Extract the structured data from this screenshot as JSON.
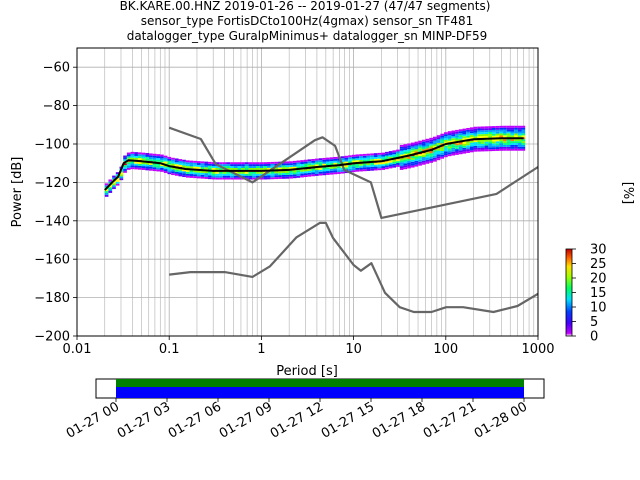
{
  "title_lines": [
    "BK.KARE.00.HNZ   2019-01-26 -- 2019-01-27  (47/47 segments)",
    "sensor_type FortisDCto100Hz(4gmax) sensor_sn TF481",
    "datalogger_type GuralpMinimus+ datalogger_sn MINP-DF59"
  ],
  "chart_data": {
    "type": "heatmap",
    "title": "BK.KARE.00.HNZ   2019-01-26 -- 2019-01-27  (47/47 segments)",
    "xlabel": "Period [s]",
    "ylabel": "Power [dB]",
    "xscale": "log",
    "xlim": [
      0.01,
      1000
    ],
    "ylim": [
      -200,
      -50
    ],
    "x_ticks": [
      "0.01",
      "0.1",
      "1",
      "10",
      "100",
      "1000"
    ],
    "y_ticks": [
      "−60",
      "−80",
      "−100",
      "−120",
      "−140",
      "−160",
      "−180",
      "−200"
    ],
    "grid": true,
    "colorbar": {
      "label": "[%]",
      "range": [
        0,
        30
      ],
      "ticks": [
        "0",
        "5",
        "10",
        "15",
        "20",
        "25",
        "30"
      ]
    },
    "noise_model_high": [
      [
        0.1,
        -91.5
      ],
      [
        0.22,
        -97.4
      ],
      [
        0.32,
        -110.5
      ],
      [
        0.8,
        -120.0
      ],
      [
        3.8,
        -98.0
      ],
      [
        4.6,
        -96.5
      ],
      [
        6.3,
        -101.0
      ],
      [
        7.9,
        -113.5
      ],
      [
        15.4,
        -120.0
      ],
      [
        20,
        -138.5
      ],
      [
        354.8,
        -126.0
      ],
      [
        1000,
        -112.0
      ]
    ],
    "noise_model_low": [
      [
        0.1,
        -168.0
      ],
      [
        0.17,
        -166.7
      ],
      [
        0.4,
        -166.7
      ],
      [
        0.8,
        -169.2
      ],
      [
        1.24,
        -163.7
      ],
      [
        2.4,
        -148.6
      ],
      [
        4.3,
        -141.1
      ],
      [
        5.0,
        -141.1
      ],
      [
        6.0,
        -149.0
      ],
      [
        10,
        -163.0
      ],
      [
        12,
        -166.0
      ],
      [
        15.6,
        -162.1
      ],
      [
        21.9,
        -177.5
      ],
      [
        31.6,
        -185.0
      ],
      [
        45,
        -187.5
      ],
      [
        70,
        -187.5
      ],
      [
        101,
        -185.0
      ],
      [
        154,
        -185.0
      ],
      [
        328,
        -187.5
      ],
      [
        600,
        -184.4
      ],
      [
        1000,
        -178.0
      ]
    ],
    "mean_psd": [
      [
        0.02,
        -124
      ],
      [
        0.024,
        -120
      ],
      [
        0.028,
        -117
      ],
      [
        0.032,
        -110
      ],
      [
        0.036,
        -108.5
      ],
      [
        0.05,
        -109
      ],
      [
        0.08,
        -110
      ],
      [
        0.1,
        -111.5
      ],
      [
        0.15,
        -113
      ],
      [
        0.3,
        -114
      ],
      [
        0.6,
        -114
      ],
      [
        1.0,
        -114
      ],
      [
        2,
        -113.5
      ],
      [
        4,
        -112
      ],
      [
        7,
        -111
      ],
      [
        10,
        -110
      ],
      [
        20,
        -109
      ],
      [
        40,
        -106
      ],
      [
        70,
        -103
      ],
      [
        100,
        -100
      ],
      [
        200,
        -97.5
      ],
      [
        400,
        -97
      ],
      [
        700,
        -97
      ]
    ],
    "time_axis": {
      "ticks": [
        "01-27 00",
        "01-27 03",
        "01-27 06",
        "01-27 09",
        "01-27 12",
        "01-27 15",
        "01-27 18",
        "01-27 21",
        "01-28 00"
      ]
    },
    "colors": {
      "noise_model": "#666666",
      "mean": "#000000",
      "coverage_top": "#008000",
      "coverage_bottom": "#0000ff"
    }
  }
}
